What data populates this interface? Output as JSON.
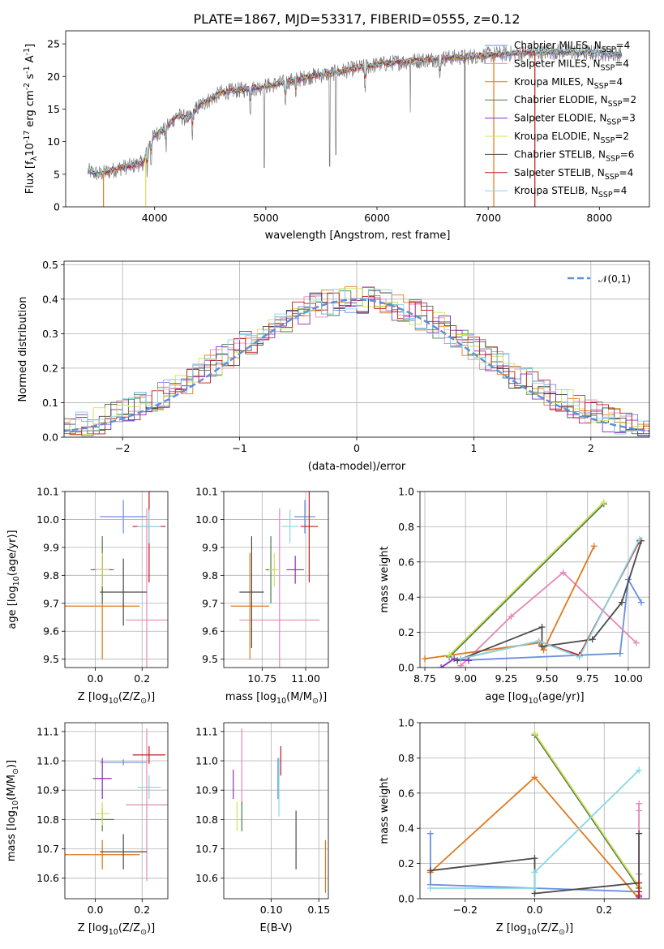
{
  "figure_title": "PLATE=1867, MJD=53317, FIBERID=0555, z=0.12",
  "model_names": [
    "Chabrier MILES, N$_{SSP}$=4",
    "Salpeter MILES, N$_{SSP}$=4",
    "Kroupa MILES, N$_{SSP}$=4",
    "Chabrier ELODIE, N$_{SSP}$=2",
    "Salpeter ELODIE, N$_{SSP}$=3",
    "Kroupa ELODIE, N$_{SSP}$=2",
    "Chabrier STELIB, N$_{SSP}$=6",
    "Salpeter STELIB, N$_{SSP}$=4",
    "Kroupa STELIB, N$_{SSP}$=4"
  ],
  "model_colors": [
    "#6a8ee0",
    "#e587b6",
    "#e0791c",
    "#4c7a4c",
    "#8b2fb8",
    "#d4e05a",
    "#4a4a4a",
    "#c11a1a",
    "#86d6e6"
  ],
  "chart_data": [
    {
      "id": "spectrum",
      "type": "line",
      "xlabel": "wavelength [Angstrom, rest frame]",
      "ylabel": "Flux [f$_\\lambda$10$^{-17}$ erg cm$^{-2}$ s$^{-1}$ A$^{-1}$]",
      "xlim": [
        3200,
        8450
      ],
      "ylim": [
        0,
        27
      ],
      "xticks": [
        4000,
        5000,
        6000,
        7000,
        8000
      ],
      "yticks": [
        0,
        5,
        10,
        15,
        20,
        25
      ],
      "legend_position": "upper right",
      "continuum": [
        [
          3400,
          5.5
        ],
        [
          3500,
          5.0
        ],
        [
          3600,
          5.5
        ],
        [
          3700,
          6.0
        ],
        [
          3800,
          6.3
        ],
        [
          3900,
          6.8
        ],
        [
          3950,
          9.5
        ],
        [
          4000,
          11.0
        ],
        [
          4100,
          12.0
        ],
        [
          4200,
          14.0
        ],
        [
          4300,
          13.5
        ],
        [
          4400,
          15.5
        ],
        [
          4500,
          16.5
        ],
        [
          4600,
          17.5
        ],
        [
          4700,
          17.8
        ],
        [
          4800,
          18.0
        ],
        [
          4900,
          18.2
        ],
        [
          5000,
          18.5
        ],
        [
          5200,
          19.2
        ],
        [
          5400,
          20.0
        ],
        [
          5600,
          20.5
        ],
        [
          5800,
          21.2
        ],
        [
          6000,
          21.8
        ],
        [
          6200,
          22.2
        ],
        [
          6400,
          22.5
        ],
        [
          6600,
          22.8
        ],
        [
          6800,
          23.0
        ],
        [
          7000,
          23.3
        ],
        [
          7200,
          23.5
        ],
        [
          7400,
          23.6
        ],
        [
          7600,
          23.8
        ],
        [
          7800,
          23.7
        ],
        [
          8000,
          23.6
        ],
        [
          8200,
          23.4
        ]
      ]
    },
    {
      "id": "residuals",
      "type": "histogram",
      "xlabel": "(data-model)/error",
      "ylabel": "Normed distribution",
      "xlim": [
        -2.5,
        2.5
      ],
      "ylim": [
        0,
        0.51
      ],
      "xticks": [
        -2,
        -1,
        0,
        1,
        2
      ],
      "yticks": [
        0.0,
        0.1,
        0.2,
        0.3,
        0.4,
        0.5
      ],
      "grid": true,
      "reference_curve": {
        "name": "$\\mathcal{N}(0,1)$",
        "color": "#5b8fd8"
      },
      "legend_position": "upper right"
    },
    {
      "id": "age_vs_Z",
      "type": "errorbar",
      "xlabel": "Z [log$_{10}$(Z/Z$_\\odot$)]",
      "ylabel": "age  [log$_{10}$(age/yr)]",
      "xlim": [
        -0.13,
        0.31
      ],
      "ylim": [
        9.47,
        10.1
      ],
      "xticks": [
        0.0,
        0.2
      ],
      "yticks": [
        9.5,
        9.6,
        9.7,
        9.8,
        9.9,
        10.0,
        10.1
      ],
      "grid": true,
      "points": [
        {
          "x": 0.12,
          "xerr": 0.1,
          "y": 10.01,
          "yerr": 0.06
        },
        {
          "x": 0.22,
          "xerr": 0.09,
          "y": 9.64,
          "yerr": 0.4
        },
        {
          "x": 0.03,
          "xerr": 0.16,
          "y": 9.69,
          "yerr": 0.19
        },
        {
          "x": 0.03,
          "xerr": 0.05,
          "y": 9.82,
          "yerr": 0.12
        },
        {
          "x": 0.03,
          "xerr": 0.04,
          "y": 9.82,
          "yerr": 0.05
        },
        {
          "x": 0.03,
          "xerr": 0.03,
          "y": 9.82,
          "yerr": 0.06
        },
        {
          "x": 0.12,
          "xerr": 0.1,
          "y": 9.74,
          "yerr": 0.12
        },
        {
          "x": 0.23,
          "xerr": 0.07,
          "y": 9.975,
          "yerr": 0.2
        },
        {
          "x": 0.23,
          "xerr": 0.05,
          "y": 9.975,
          "yerr": 0.06
        }
      ]
    },
    {
      "id": "age_vs_mass",
      "type": "errorbar",
      "xlabel": "mass [log$_{10}$(M/M$_\\odot$)]",
      "ylabel": "",
      "xlim": [
        10.53,
        11.13
      ],
      "ylim": [
        9.47,
        10.1
      ],
      "xticks": [
        10.75,
        11.0
      ],
      "yticks": [
        9.5,
        9.6,
        9.7,
        9.8,
        9.9,
        10.0,
        10.1
      ],
      "grid": true,
      "points": [
        {
          "x": 10.995,
          "xerr": 0.06,
          "y": 10.01,
          "yerr": 0.06
        },
        {
          "x": 10.85,
          "xerr": 0.23,
          "y": 9.64,
          "yerr": 0.4
        },
        {
          "x": 10.68,
          "xerr": 0.11,
          "y": 9.69,
          "yerr": 0.19
        },
        {
          "x": 10.8,
          "xerr": 0.03,
          "y": 9.82,
          "yerr": 0.12
        },
        {
          "x": 10.94,
          "xerr": 0.05,
          "y": 9.82,
          "yerr": 0.05
        },
        {
          "x": 10.82,
          "xerr": 0.03,
          "y": 9.82,
          "yerr": 0.06
        },
        {
          "x": 10.69,
          "xerr": 0.07,
          "y": 9.74,
          "yerr": 0.2
        },
        {
          "x": 11.02,
          "xerr": 0.05,
          "y": 9.975,
          "yerr": 0.2
        },
        {
          "x": 10.91,
          "xerr": 0.05,
          "y": 9.975,
          "yerr": 0.06
        }
      ]
    },
    {
      "id": "weight_vs_age",
      "type": "line",
      "xlabel": "age  [log$_{10}$(age/yr)]",
      "ylabel": "mass weight",
      "xlim": [
        8.72,
        10.13
      ],
      "ylim": [
        0,
        1.0
      ],
      "xticks": [
        8.75,
        9.0,
        9.25,
        9.5,
        9.75,
        10.0
      ],
      "yticks": [
        0.0,
        0.2,
        0.4,
        0.6,
        0.8,
        1.0
      ],
      "grid": true,
      "series": [
        {
          "x": [
            8.95,
            9.95,
            10.0,
            10.08
          ],
          "y": [
            0.04,
            0.08,
            0.5,
            0.37
          ]
        },
        {
          "x": [
            8.97,
            9.28,
            9.6,
            10.05
          ],
          "y": [
            0.01,
            0.29,
            0.54,
            0.14
          ]
        },
        {
          "x": [
            8.75,
            9.45,
            9.48,
            9.79
          ],
          "y": [
            0.05,
            0.14,
            0.1,
            0.69
          ]
        },
        {
          "x": [
            8.9,
            9.85
          ],
          "y": [
            0.06,
            0.93
          ]
        },
        {
          "x": [
            8.85,
            8.93,
            9.02
          ],
          "y": [
            0.0,
            0.05,
            0.04
          ]
        },
        {
          "x": [
            8.9,
            9.85
          ],
          "y": [
            0.07,
            0.94
          ]
        },
        {
          "x": [
            8.95,
            9.47,
            9.47,
            9.78,
            9.96,
            10.08
          ],
          "y": [
            0.04,
            0.23,
            0.12,
            0.16,
            0.37,
            0.72
          ]
        },
        {
          "x": [
            8.97,
            9.45,
            9.7,
            10.07
          ],
          "y": [
            0.05,
            0.15,
            0.07,
            0.72
          ]
        },
        {
          "x": [
            8.97,
            9.45,
            9.7,
            10.07
          ],
          "y": [
            0.05,
            0.15,
            0.06,
            0.73
          ]
        }
      ]
    },
    {
      "id": "mass_vs_Z",
      "type": "errorbar",
      "xlabel": "Z [log$_{10}$(Z/Z$_\\odot$)]",
      "ylabel": "mass [log$_{10}$(M/M$_\\odot$)]",
      "xlim": [
        -0.13,
        0.31
      ],
      "ylim": [
        10.53,
        11.13
      ],
      "xticks": [
        0.0,
        0.2
      ],
      "yticks": [
        10.6,
        10.7,
        10.8,
        10.9,
        11.0,
        11.1
      ],
      "grid": true,
      "points": [
        {
          "x": 0.12,
          "xerr": 0.1,
          "y": 10.995,
          "yerr": 0.01
        },
        {
          "x": 0.22,
          "xerr": 0.09,
          "y": 10.85,
          "yerr": 0.26
        },
        {
          "x": 0.03,
          "xerr": 0.16,
          "y": 10.68,
          "yerr": 0.05
        },
        {
          "x": 0.03,
          "xerr": 0.05,
          "y": 10.8,
          "yerr": 0.04
        },
        {
          "x": 0.03,
          "xerr": 0.04,
          "y": 10.94,
          "yerr": 0.07
        },
        {
          "x": 0.03,
          "xerr": 0.03,
          "y": 10.82,
          "yerr": 0.04
        },
        {
          "x": 0.12,
          "xerr": 0.1,
          "y": 10.69,
          "yerr": 0.06
        },
        {
          "x": 0.23,
          "xerr": 0.07,
          "y": 11.02,
          "yerr": 0.03
        },
        {
          "x": 0.23,
          "xerr": 0.05,
          "y": 10.91,
          "yerr": 0.04
        }
      ]
    },
    {
      "id": "mass_vs_ebv",
      "type": "errorbar",
      "xlabel": "E(B-V)",
      "ylabel": "",
      "xlim": [
        0.05,
        0.16
      ],
      "ylim": [
        10.53,
        11.13
      ],
      "xticks": [
        0.1,
        0.15
      ],
      "yticks": [
        10.6,
        10.7,
        10.8,
        10.9,
        11.0,
        11.1
      ],
      "grid": true,
      "points": [
        {
          "x": 0.107,
          "xerr": 0,
          "y": 10.94,
          "yerr": 0.07
        },
        {
          "x": 0.069,
          "xerr": 0,
          "y": 10.98,
          "yerr": 0.13
        },
        {
          "x": 0.157,
          "xerr": 0,
          "y": 10.64,
          "yerr": 0.09
        },
        {
          "x": 0.069,
          "xerr": 0,
          "y": 10.81,
          "yerr": 0.05
        },
        {
          "x": 0.06,
          "xerr": 0,
          "y": 10.92,
          "yerr": 0.05
        },
        {
          "x": 0.064,
          "xerr": 0,
          "y": 10.81,
          "yerr": 0.05
        },
        {
          "x": 0.126,
          "xerr": 0,
          "y": 10.73,
          "yerr": 0.1
        },
        {
          "x": 0.11,
          "xerr": 0,
          "y": 11.0,
          "yerr": 0.05
        },
        {
          "x": 0.108,
          "xerr": 0,
          "y": 10.91,
          "yerr": 0.1
        }
      ]
    },
    {
      "id": "weight_vs_Z",
      "type": "line",
      "xlabel": "Z [log$_{10}$(Z/Z$_\\odot$)]",
      "ylabel": "mass weight",
      "xlim": [
        -0.33,
        0.33
      ],
      "ylim": [
        0,
        1.0
      ],
      "xticks": [
        -0.2,
        0.0,
        0.2
      ],
      "yticks": [
        0.0,
        0.2,
        0.4,
        0.6,
        0.8,
        1.0
      ],
      "grid": true,
      "series": [
        {
          "x": [
            -0.3,
            -0.3,
            0.0,
            0.3
          ],
          "y": [
            0.37,
            0.08,
            0.06,
            0.04
          ]
        },
        {
          "x": [
            0.3,
            0.3,
            0.3
          ],
          "y": [
            0.54,
            0.5,
            0.14
          ]
        },
        {
          "x": [
            -0.3,
            0.0,
            0.3
          ],
          "y": [
            0.15,
            0.69,
            0.0
          ]
        },
        {
          "x": [
            0.0,
            0.3
          ],
          "y": [
            0.93,
            0.06
          ]
        },
        {
          "x": [
            0.3,
            0.3
          ],
          "y": [
            0.04,
            0.01
          ]
        },
        {
          "x": [
            0.0,
            0.3
          ],
          "y": [
            0.94,
            0.07
          ]
        },
        {
          "x": [
            -0.3,
            0.0,
            0.0,
            0.3,
            0.3
          ],
          "y": [
            0.16,
            0.23,
            0.03,
            0.09,
            0.37
          ]
        },
        {
          "x": [
            0.3,
            0.3
          ],
          "y": [
            0.09,
            0.02
          ]
        },
        {
          "x": [
            -0.3,
            0.0,
            0.0,
            0.3
          ],
          "y": [
            0.06,
            0.06,
            0.15,
            0.73
          ]
        }
      ]
    }
  ]
}
